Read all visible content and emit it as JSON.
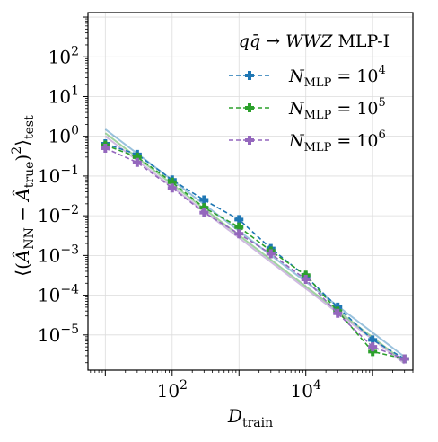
{
  "chart_data": {
    "type": "line",
    "title": "",
    "xlabel": "D_train",
    "ylabel": "⟨(Â_NN − Â_true)²⟩_test",
    "xscale": "log",
    "yscale": "log",
    "xlim": [
      5.5,
      400000
    ],
    "ylim": [
      1.3e-06,
      1300
    ],
    "grid": true,
    "legend": {
      "title": "qq̄ → WWZ MLP-I",
      "placement": "top-right"
    },
    "x": [
      10,
      30,
      100,
      300,
      1000,
      3000,
      10000,
      30000,
      100000,
      300000
    ],
    "x_tick_labels": [
      {
        "value": 100,
        "base": "10",
        "exp": "2"
      },
      {
        "value": 10000,
        "base": "10",
        "exp": "4"
      }
    ],
    "y_tick_labels": [
      {
        "value": 1e-05,
        "base": "10",
        "exp": "−5"
      },
      {
        "value": 0.0001,
        "base": "10",
        "exp": "−4"
      },
      {
        "value": 0.001,
        "base": "10",
        "exp": "−3"
      },
      {
        "value": 0.01,
        "base": "10",
        "exp": "−2"
      },
      {
        "value": 0.1,
        "base": "10",
        "exp": "−1"
      },
      {
        "value": 1,
        "base": "10",
        "exp": "0"
      },
      {
        "value": 10,
        "base": "10",
        "exp": "1"
      },
      {
        "value": 100,
        "base": "10",
        "exp": "2"
      }
    ],
    "series": [
      {
        "name": "N_MLP = 10^4",
        "label_exp": "4",
        "color": "#1f77b4",
        "values": [
          0.65,
          0.35,
          0.08,
          0.025,
          0.008,
          0.0015,
          0.0003,
          5e-05,
          7.5e-06,
          2.5e-06
        ]
      },
      {
        "name": "N_MLP = 10^5",
        "label_exp": "5",
        "color": "#2ca02c",
        "values": [
          0.6,
          0.3,
          0.07,
          0.016,
          0.0052,
          0.0013,
          0.00032,
          4e-05,
          3.8e-06,
          2.5e-06
        ]
      },
      {
        "name": "N_MLP = 10^6",
        "label_exp": "6",
        "color": "#9467bd",
        "values": [
          0.5,
          0.22,
          0.05,
          0.012,
          0.0035,
          0.0011,
          0.00025,
          3.5e-05,
          5e-06,
          2.5e-06
        ]
      }
    ],
    "fit_lines": [
      {
        "color": "#1f77b4",
        "x": [
          10,
          300000
        ],
        "values": [
          1.5,
          2.8e-06
        ]
      },
      {
        "color": "#2ca02c",
        "x": [
          10,
          300000
        ],
        "values": [
          1.2,
          2.1e-06
        ]
      },
      {
        "color": "#9467bd",
        "x": [
          10,
          300000
        ],
        "values": [
          1.0,
          1.9e-06
        ]
      }
    ]
  }
}
